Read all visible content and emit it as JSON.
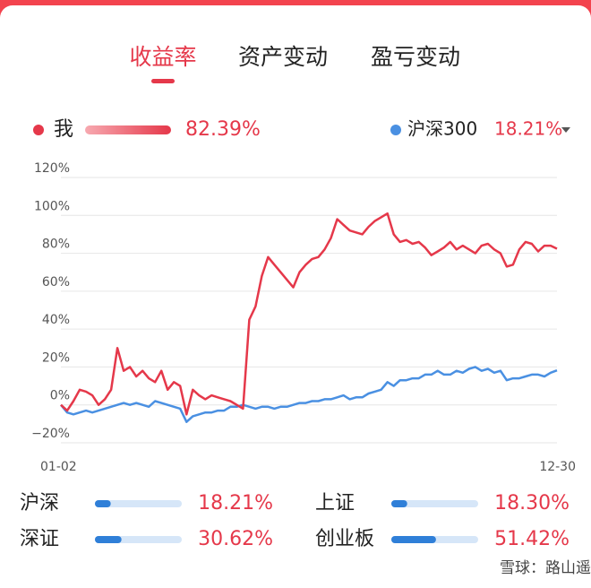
{
  "tabs": [
    "收益率",
    "资产变动",
    "盈亏变动"
  ],
  "chart_data": {
    "type": "line",
    "categories": [
      "01-02",
      null,
      null,
      null,
      null,
      null,
      null,
      null,
      null,
      null,
      null,
      null,
      null,
      null,
      null,
      null,
      null,
      null,
      null,
      null,
      null,
      null,
      null,
      null,
      null,
      null,
      null,
      null,
      null,
      null,
      null,
      null,
      null,
      null,
      null,
      null,
      null,
      null,
      null,
      null,
      null,
      null,
      null,
      null,
      null,
      null,
      null,
      null,
      null,
      null,
      null,
      null,
      null,
      null,
      null,
      null,
      null,
      null,
      null,
      null,
      null,
      null,
      null,
      null,
      null,
      null,
      null,
      null,
      null,
      null,
      null,
      null,
      null,
      null,
      null,
      null,
      null,
      null,
      null,
      "12-30"
    ],
    "series": [
      {
        "name": "我",
        "color": "#e5384a",
        "latest": "82.39%",
        "values": [
          0,
          -3,
          2,
          8,
          7,
          5,
          0,
          3,
          8,
          30,
          18,
          20,
          15,
          18,
          14,
          12,
          18,
          8,
          12,
          10,
          -5,
          8,
          5,
          3,
          5,
          4,
          3,
          2,
          0,
          -2,
          45,
          52,
          68,
          78,
          74,
          70,
          66,
          62,
          70,
          74,
          77,
          78,
          82,
          88,
          98,
          95,
          92,
          91,
          90,
          94,
          97,
          99,
          101,
          90,
          86,
          87,
          85,
          86,
          83,
          79,
          81,
          83,
          86,
          82,
          84,
          82,
          80,
          84,
          85,
          82,
          80,
          73,
          74,
          82,
          86,
          85,
          81,
          84,
          84,
          82.39
        ]
      },
      {
        "name": "沪深300",
        "color": "#4a90e2",
        "latest": "18.21%",
        "values": [
          0,
          -4,
          -5,
          -4,
          -3,
          -4,
          -3,
          -2,
          -1,
          0,
          1,
          0,
          1,
          0,
          -1,
          2,
          1,
          0,
          -1,
          -2,
          -9,
          -6,
          -5,
          -4,
          -4,
          -3,
          -3,
          -1,
          -1,
          0,
          -1,
          -2,
          -1,
          -1,
          -2,
          -1,
          -1,
          0,
          1,
          1,
          2,
          2,
          3,
          3,
          4,
          5,
          3,
          4,
          4,
          6,
          7,
          8,
          12,
          10,
          13,
          13,
          14,
          14,
          16,
          16,
          18,
          16,
          16,
          18,
          17,
          19,
          20,
          18,
          19,
          17,
          18,
          13,
          14,
          14,
          15,
          16,
          16,
          15,
          17,
          18.21
        ]
      }
    ],
    "ylim": [
      -20,
      120
    ],
    "yticks": [
      {
        "value": -20,
        "label": "−20%"
      },
      {
        "value": 0,
        "label": "0%"
      },
      {
        "value": 20,
        "label": "20%"
      },
      {
        "value": 40,
        "label": "40%"
      },
      {
        "value": 60,
        "label": "60%"
      },
      {
        "value": 80,
        "label": "80%"
      },
      {
        "value": 100,
        "label": "100%"
      },
      {
        "value": 120,
        "label": "120%"
      }
    ],
    "grid": true
  },
  "comparison": [
    {
      "name": "沪深",
      "value": 18.21,
      "label": "18.21%"
    },
    {
      "name": "上证",
      "value": 18.3,
      "label": "18.30%"
    },
    {
      "name": "深证",
      "value": 30.62,
      "label": "30.62%"
    },
    {
      "name": "创业板",
      "value": 51.42,
      "label": "51.42%"
    }
  ],
  "comparison_bar_max": 100,
  "watermark": "雪球：路山遥"
}
